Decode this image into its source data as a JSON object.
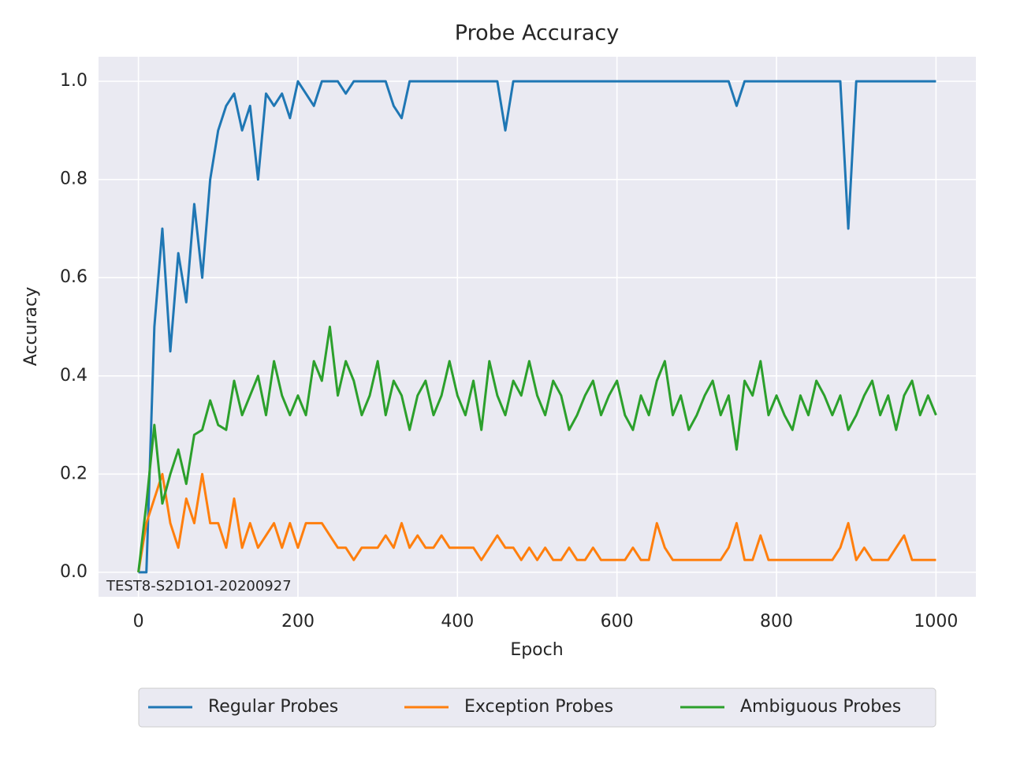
{
  "chart_data": {
    "type": "line",
    "title": "Probe Accuracy",
    "x_label": "Epoch",
    "y_label": "Accuracy",
    "annotation": "TEST8-S2D1O1-20200927",
    "x": [
      0,
      10,
      20,
      30,
      40,
      50,
      60,
      70,
      80,
      90,
      100,
      110,
      120,
      130,
      140,
      150,
      160,
      170,
      180,
      190,
      200,
      210,
      220,
      230,
      240,
      250,
      260,
      270,
      280,
      290,
      300,
      310,
      320,
      330,
      340,
      350,
      360,
      370,
      380,
      390,
      400,
      410,
      420,
      430,
      440,
      450,
      460,
      470,
      480,
      490,
      500,
      510,
      520,
      530,
      540,
      550,
      560,
      570,
      580,
      590,
      600,
      610,
      620,
      630,
      640,
      650,
      660,
      670,
      680,
      690,
      700,
      710,
      720,
      730,
      740,
      750,
      760,
      770,
      780,
      790,
      800,
      810,
      820,
      830,
      840,
      850,
      860,
      870,
      880,
      890,
      900,
      910,
      920,
      930,
      940,
      950,
      960,
      970,
      980,
      990,
      1000
    ],
    "series": [
      {
        "name": "Regular Probes",
        "color": "#1f77b4",
        "values": [
          0,
          0,
          0.5,
          0.7,
          0.45,
          0.65,
          0.55,
          0.75,
          0.6,
          0.8,
          0.9,
          0.95,
          0.975,
          0.9,
          0.95,
          0.8,
          0.975,
          0.95,
          0.975,
          0.925,
          1,
          0.975,
          0.95,
          1,
          1,
          1,
          0.975,
          1,
          1,
          1,
          1,
          1,
          0.95,
          0.925,
          1,
          1,
          1,
          1,
          1,
          1,
          1,
          1,
          1,
          1,
          1,
          1,
          0.9,
          1,
          1,
          1,
          1,
          1,
          1,
          1,
          1,
          1,
          1,
          1,
          1,
          1,
          1,
          1,
          1,
          1,
          1,
          1,
          1,
          1,
          1,
          1,
          1,
          1,
          1,
          1,
          1,
          0.95,
          1,
          1,
          1,
          1,
          1,
          1,
          1,
          1,
          1,
          1,
          1,
          1,
          1,
          0.7,
          1,
          1,
          1,
          1,
          1,
          1,
          1,
          1,
          1,
          1,
          1
        ]
      },
      {
        "name": "Exception Probes",
        "color": "#ff7f0e",
        "values": [
          0,
          0.1,
          0.15,
          0.2,
          0.1,
          0.05,
          0.15,
          0.1,
          0.2,
          0.1,
          0.1,
          0.05,
          0.15,
          0.05,
          0.1,
          0.05,
          0.075,
          0.1,
          0.05,
          0.1,
          0.05,
          0.1,
          0.1,
          0.1,
          0.075,
          0.05,
          0.05,
          0.025,
          0.05,
          0.05,
          0.05,
          0.075,
          0.05,
          0.1,
          0.05,
          0.075,
          0.05,
          0.05,
          0.075,
          0.05,
          0.05,
          0.05,
          0.05,
          0.025,
          0.05,
          0.075,
          0.05,
          0.05,
          0.025,
          0.05,
          0.025,
          0.05,
          0.025,
          0.025,
          0.05,
          0.025,
          0.025,
          0.05,
          0.025,
          0.025,
          0.025,
          0.025,
          0.05,
          0.025,
          0.025,
          0.1,
          0.05,
          0.025,
          0.025,
          0.025,
          0.025,
          0.025,
          0.025,
          0.025,
          0.05,
          0.1,
          0.025,
          0.025,
          0.075,
          0.025,
          0.025,
          0.025,
          0.025,
          0.025,
          0.025,
          0.025,
          0.025,
          0.025,
          0.05,
          0.1,
          0.025,
          0.05,
          0.025,
          0.025,
          0.025,
          0.05,
          0.075,
          0.025,
          0.025,
          0.025,
          0.025
        ]
      },
      {
        "name": "Ambiguous Probes",
        "color": "#2ca02c",
        "values": [
          0,
          0.14,
          0.3,
          0.14,
          0.2,
          0.25,
          0.18,
          0.28,
          0.29,
          0.35,
          0.3,
          0.29,
          0.39,
          0.32,
          0.36,
          0.4,
          0.32,
          0.43,
          0.36,
          0.32,
          0.36,
          0.32,
          0.43,
          0.39,
          0.5,
          0.36,
          0.43,
          0.39,
          0.32,
          0.36,
          0.43,
          0.32,
          0.39,
          0.36,
          0.29,
          0.36,
          0.39,
          0.32,
          0.36,
          0.43,
          0.36,
          0.32,
          0.39,
          0.29,
          0.43,
          0.36,
          0.32,
          0.39,
          0.36,
          0.43,
          0.36,
          0.32,
          0.39,
          0.36,
          0.29,
          0.32,
          0.36,
          0.39,
          0.32,
          0.36,
          0.39,
          0.32,
          0.29,
          0.36,
          0.32,
          0.39,
          0.43,
          0.32,
          0.36,
          0.29,
          0.32,
          0.36,
          0.39,
          0.32,
          0.36,
          0.25,
          0.39,
          0.36,
          0.43,
          0.32,
          0.36,
          0.32,
          0.29,
          0.36,
          0.32,
          0.39,
          0.36,
          0.32,
          0.36,
          0.29,
          0.32,
          0.36,
          0.39,
          0.32,
          0.36,
          0.29,
          0.36,
          0.39,
          0.32,
          0.36,
          0.32
        ]
      }
    ],
    "xlim": [
      -50,
      1050
    ],
    "ylim": [
      -0.05,
      1.05
    ],
    "xticks": [
      0,
      200,
      400,
      600,
      800,
      1000
    ],
    "yticks": [
      {
        "value": 0,
        "label": "0.0"
      },
      0.2,
      0.4,
      0.6,
      0.8,
      {
        "value": 1,
        "label": "1.0"
      }
    ],
    "grid": true,
    "legend": "bottom"
  }
}
